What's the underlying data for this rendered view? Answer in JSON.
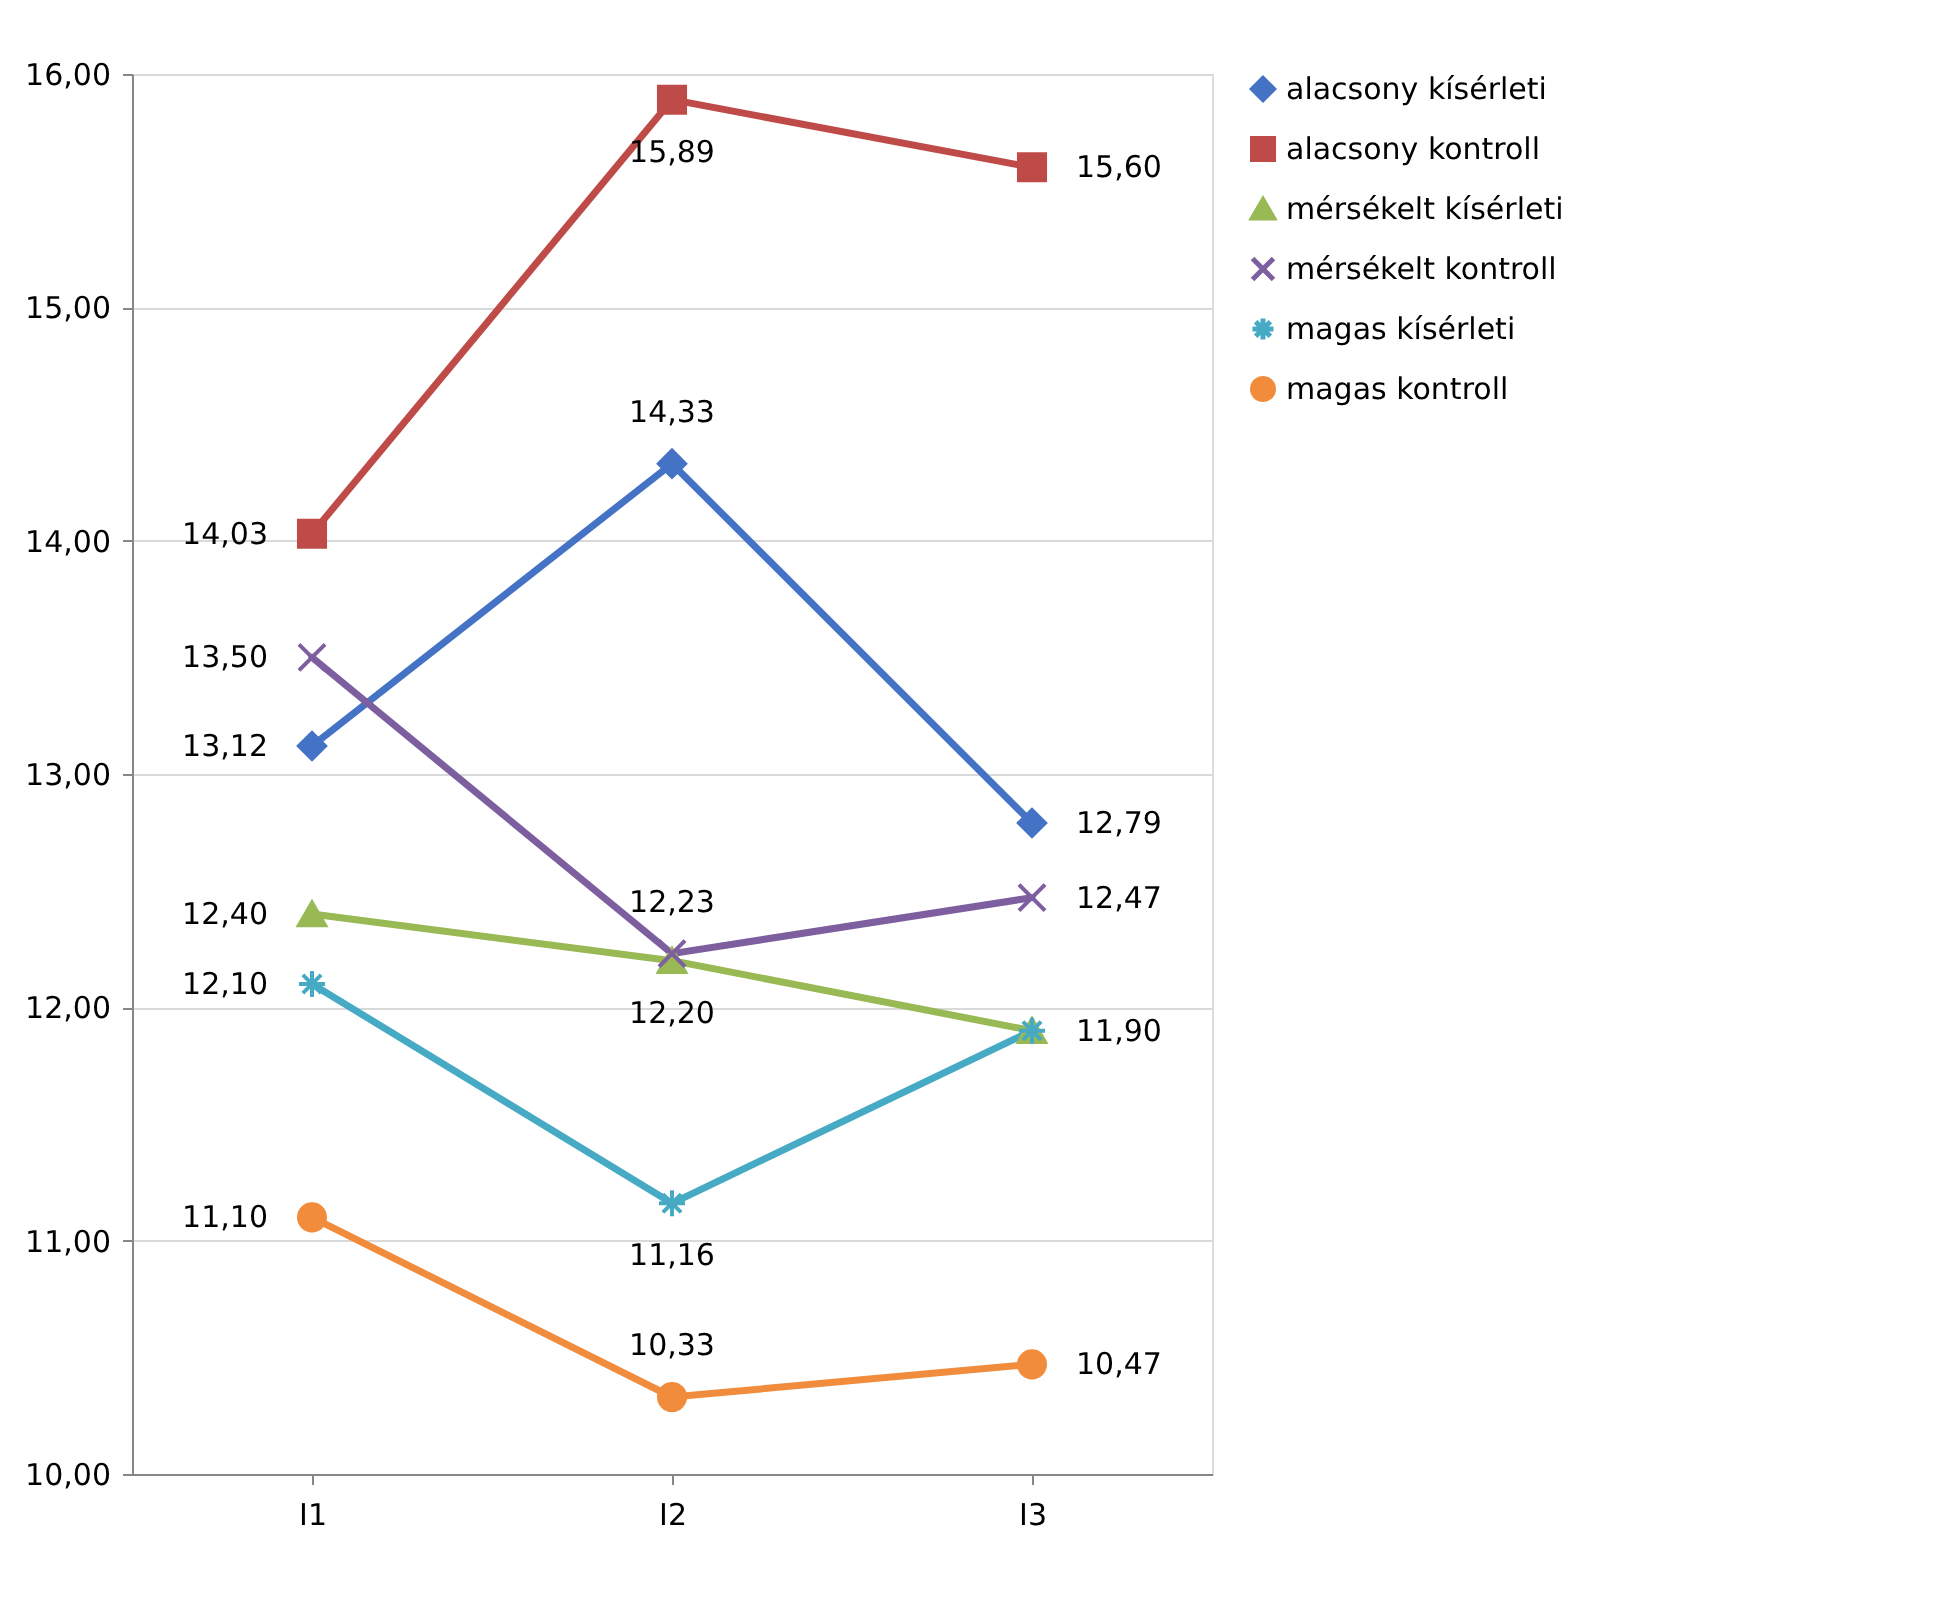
{
  "chart_data": {
    "type": "line",
    "categories": [
      "I1",
      "I2",
      "I3"
    ],
    "series": [
      {
        "name": "alacsony kísérleti",
        "color": "#4472c4",
        "marker": "diamond",
        "values": [
          13.12,
          14.33,
          12.79
        ],
        "value_labels": [
          "13,12",
          "14,33",
          "12,79"
        ]
      },
      {
        "name": "alacsony kontroll",
        "color": "#be4b48",
        "marker": "square",
        "values": [
          14.03,
          15.89,
          15.6
        ],
        "value_labels": [
          "14,03",
          "15,89",
          "15,60"
        ]
      },
      {
        "name": "mérsékelt kísérleti",
        "color": "#98b954",
        "marker": "triangle",
        "values": [
          12.4,
          12.2,
          11.9
        ],
        "value_labels": [
          "12,40",
          "12,20",
          "11,90"
        ]
      },
      {
        "name": "mérsékelt kontroll",
        "color": "#7d5fa0",
        "marker": "cross",
        "values": [
          13.5,
          12.23,
          12.47
        ],
        "value_labels": [
          "13,50",
          "12,23",
          "12,47"
        ]
      },
      {
        "name": "magas kísérleti",
        "color": "#46aac5",
        "marker": "cross",
        "values": [
          12.1,
          11.16,
          11.9
        ],
        "value_labels": [
          "12,10",
          "11,16",
          null
        ]
      },
      {
        "name": "magas kontroll",
        "color": "#f08c3c",
        "marker": "circle",
        "values": [
          11.1,
          10.33,
          10.47
        ],
        "value_labels": [
          "11,10",
          "10,33",
          "10,47"
        ]
      }
    ],
    "ylim": [
      10,
      16
    ],
    "yticks": [
      {
        "value": 10,
        "label": "10,00"
      },
      {
        "value": 11,
        "label": "11,00"
      },
      {
        "value": 12,
        "label": "12,00"
      },
      {
        "value": 13,
        "label": "13,00"
      },
      {
        "value": 14,
        "label": "14,00"
      },
      {
        "value": 15,
        "label": "15,00"
      },
      {
        "value": 16,
        "label": "16,00"
      }
    ],
    "grid": "y",
    "legend": "right",
    "line_style": "solid"
  }
}
